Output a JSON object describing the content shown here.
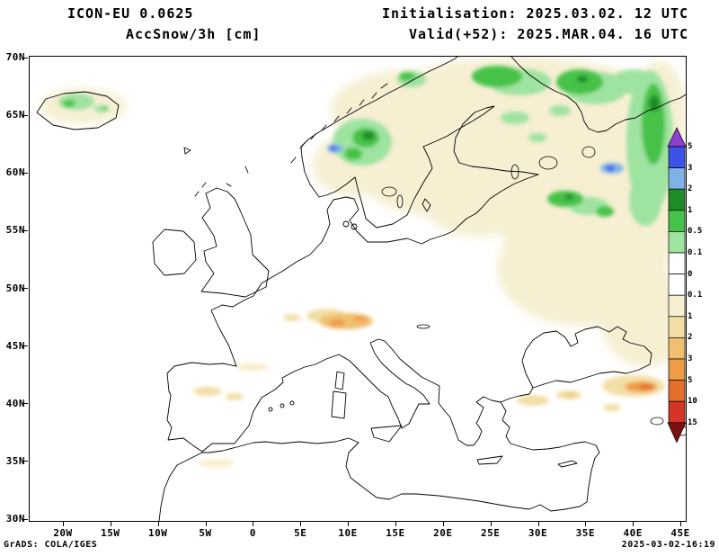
{
  "header": {
    "model": "ICON-EU 0.0625",
    "variable": "AccSnow/3h [cm]",
    "init": "Initialisation: 2025.03.02. 12 UTC",
    "valid": "Valid(+52): 2025.MAR.04. 16 UTC"
  },
  "map": {
    "lat_labels": [
      "70N",
      "65N",
      "60N",
      "55N",
      "50N",
      "45N",
      "40N",
      "35N",
      "30N"
    ],
    "lon_labels": [
      "20W",
      "15W",
      "10W",
      "5W",
      "0",
      "5E",
      "10E",
      "15E",
      "20E",
      "25E",
      "30E",
      "35E",
      "40E",
      "45E"
    ]
  },
  "colorbar": {
    "top_arrow_color": "#8c3fd0",
    "bottom_arrow_color": "#7a1010",
    "segment_colors": [
      "#3b53e8",
      "#7fb3e8",
      "#1f8c28",
      "#46c24a",
      "#9fe3a0",
      "#ffffff",
      "#ffffff",
      "#f6efd2",
      "#f2dfa6",
      "#f0c070",
      "#ee9d44",
      "#e2702c",
      "#d63426"
    ],
    "labels": [
      "5",
      "3",
      "2",
      "1",
      "0.5",
      "0.1",
      "0",
      "0.1",
      "1",
      "2",
      "3",
      "5",
      "10",
      "15"
    ]
  },
  "footer": {
    "credit": "GrADS: COLA/IGES",
    "timestamp": "2025-03-02-16:19"
  }
}
